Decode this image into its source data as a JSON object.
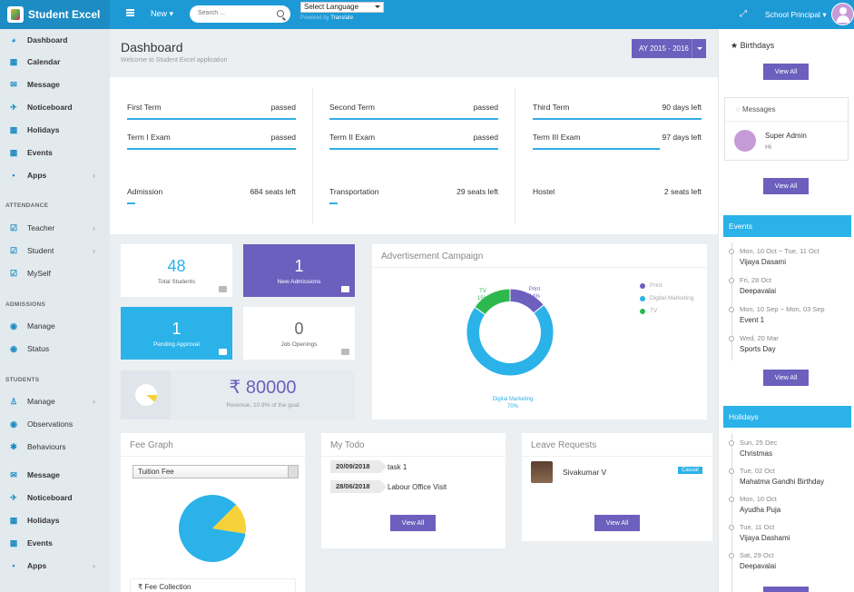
{
  "brand": "Student Excel",
  "header": {
    "new_label": "New",
    "search_placeholder": "Search ...",
    "language_label": "Select Language",
    "powered_prefix": "Powered by",
    "powered_brand": "Translate",
    "user_label": "School Principal"
  },
  "sidebar": {
    "items_top": [
      "Dashboard",
      "Calendar",
      "Message",
      "Noticeboard",
      "Holidays",
      "Events",
      "Apps"
    ],
    "attendance_heading": "ATTENDANCE",
    "attendance_items": [
      "Teacher",
      "Student",
      "MySelf"
    ],
    "admissions_heading": "ADMISSIONS",
    "admissions_items": [
      "Manage",
      "Status"
    ],
    "students_heading": "STUDENTS",
    "students_items": [
      "Manage",
      "Observations",
      "Behaviours"
    ],
    "items_bottom": [
      "Message",
      "Noticeboard",
      "Holidays",
      "Events",
      "Apps"
    ]
  },
  "dashboard": {
    "title": "Dashboard",
    "subtitle": "Welcome to Student Excel application",
    "ay_label": "AY 2015 - 2016"
  },
  "terms": [
    {
      "label": "First Term",
      "status": "passed",
      "progress": 1.0
    },
    {
      "label": "Second Term",
      "status": "passed",
      "progress": 1.0
    },
    {
      "label": "Third Term",
      "status": "90 days left",
      "progress": 1.0
    },
    {
      "label": "Term I Exam",
      "status": "passed",
      "progress": 1.0
    },
    {
      "label": "Term II Exam",
      "status": "passed",
      "progress": 1.0
    },
    {
      "label": "Term III Exam",
      "status": "97 days left",
      "progress": 0.75
    },
    {
      "label": "Admission",
      "status": "684 seats left",
      "progress": 0.05
    },
    {
      "label": "Transportation",
      "status": "29 seats left",
      "progress": 0.05
    },
    {
      "label": "Hostel",
      "status": "2 seats left",
      "progress": 0.0
    }
  ],
  "stats": {
    "total_students": {
      "value": "48",
      "label": "Total Students"
    },
    "new_admissions": {
      "value": "1",
      "label": "New Admissions"
    },
    "pending_approval": {
      "value": "1",
      "label": "Pending Approval"
    },
    "job_openings": {
      "value": "0",
      "label": "Job Openings"
    },
    "revenue": {
      "currency": "₹",
      "value": "80000",
      "label": "Revenue, 10.9% of the goal",
      "goal_fraction": 0.109
    }
  },
  "campaign": {
    "title": "Advertisement Campaign",
    "chart_data": {
      "type": "pie",
      "labels": [
        "Print",
        "Digital Marketing",
        "TV"
      ],
      "values": [
        14,
        70,
        15
      ],
      "percent_labels": [
        "14%",
        "70%",
        "15%"
      ],
      "colors": [
        "#6c5fbd",
        "#2ab2e9",
        "#2db84d"
      ],
      "legend": "right"
    }
  },
  "fee_graph": {
    "title": "Fee Graph",
    "select_value": "Tuition Fee",
    "footer_label": "Fee Collection",
    "footer_currency": "₹",
    "chart_data": {
      "type": "pie",
      "values": [
        85,
        15
      ],
      "colors": [
        "#2ab2e9",
        "#f7d13a"
      ]
    }
  },
  "todo": {
    "title": "My Todo",
    "items": [
      {
        "date": "20/09/2018",
        "task": "task 1"
      },
      {
        "date": "28/06/2018",
        "task": "Labour Office Visit"
      }
    ],
    "view_all": "View All"
  },
  "leave": {
    "title": "Leave Requests",
    "name": "Sivakumar V",
    "badge": "Casual",
    "view_all": "View All"
  },
  "right": {
    "birthdays_title": "Birthdays",
    "view_all": "View All",
    "messages_title": "Messages",
    "message_from": "Super Admin",
    "message_text": "Hi",
    "events_title": "Events",
    "events": [
      {
        "date": "Mon, 10 Oct ~ Tue, 11 Oct",
        "name": "Vijaya Dasami"
      },
      {
        "date": "Fri, 28 Oct",
        "name": "Deepavalai"
      },
      {
        "date": "Mon, 10 Sep ~ Mon, 03 Sep",
        "name": "Event 1"
      },
      {
        "date": "Wed, 20 Mar",
        "name": "Sports Day"
      }
    ],
    "holidays_title": "Holidays",
    "holidays": [
      {
        "date": "Sun, 25 Dec",
        "name": "Christmas"
      },
      {
        "date": "Tue, 02 Oct",
        "name": "Mahatma Gandhi Birthday"
      },
      {
        "date": "Mon, 10 Oct",
        "name": "Ayudha Puja"
      },
      {
        "date": "Tue, 11 Oct",
        "name": "Vijaya Dashami"
      },
      {
        "date": "Sat, 29 Oct",
        "name": "Deepavalai"
      }
    ]
  },
  "colors": {
    "primary": "#1d9ad6",
    "purple": "#6c5fbd",
    "cyan": "#2ab2e9",
    "green": "#2db84d",
    "yellow": "#f7d13a"
  }
}
